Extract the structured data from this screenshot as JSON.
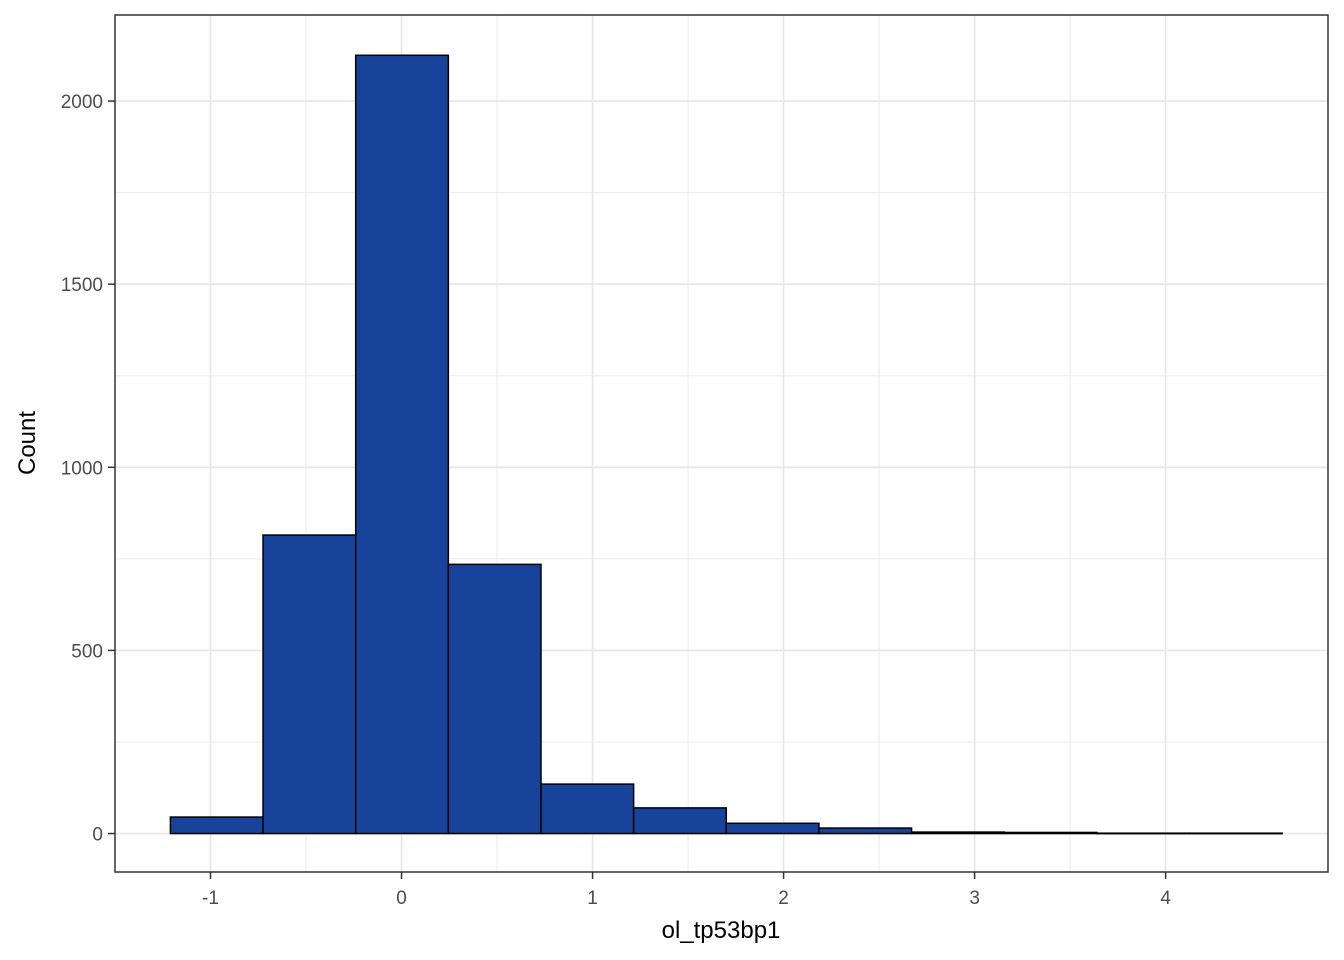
{
  "chart_data": {
    "type": "bar",
    "subtype": "histogram",
    "title": "",
    "xlabel": "ol_tp53bp1",
    "ylabel": "Count",
    "xlim": [
      -1.5,
      4.85
    ],
    "ylim": [
      -105,
      2235
    ],
    "x_ticks": [
      -1,
      0,
      1,
      2,
      3,
      4
    ],
    "y_ticks": [
      0,
      500,
      1000,
      1500,
      2000
    ],
    "grid": true,
    "legend": "none",
    "bar_fill": "#17449A",
    "bar_edge": "#000000",
    "bins": [
      {
        "x0": -1.21,
        "x1": -0.725,
        "count": 45
      },
      {
        "x0": -0.725,
        "x1": -0.24,
        "count": 815
      },
      {
        "x0": -0.24,
        "x1": 0.245,
        "count": 2125
      },
      {
        "x0": 0.245,
        "x1": 0.73,
        "count": 735
      },
      {
        "x0": 0.73,
        "x1": 1.215,
        "count": 135
      },
      {
        "x0": 1.215,
        "x1": 1.7,
        "count": 70
      },
      {
        "x0": 1.7,
        "x1": 2.185,
        "count": 28
      },
      {
        "x0": 2.185,
        "x1": 2.67,
        "count": 15
      },
      {
        "x0": 2.67,
        "x1": 3.155,
        "count": 4
      },
      {
        "x0": 3.155,
        "x1": 3.64,
        "count": 3
      },
      {
        "x0": 3.64,
        "x1": 4.125,
        "count": 1
      },
      {
        "x0": 4.125,
        "x1": 4.61,
        "count": 1
      }
    ]
  }
}
